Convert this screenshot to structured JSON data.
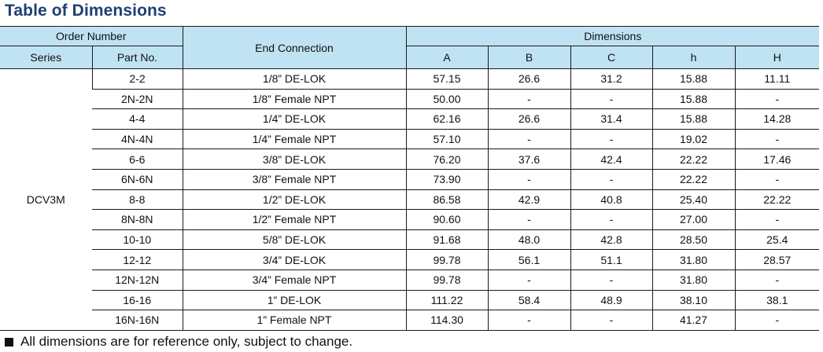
{
  "title": "Table of Dimensions",
  "headers": {
    "order_number": "Order Number",
    "series": "Series",
    "part_no": "Part No.",
    "end_connection": "End Connection",
    "dimensions": "Dimensions",
    "A": "A",
    "B": "B",
    "C": "C",
    "h": "h",
    "H": "H"
  },
  "series_name": "DCV3M",
  "rows": [
    {
      "part": "2-2",
      "conn": "1/8” DE-LOK",
      "A": "57.15",
      "B": "26.6",
      "C": "31.2",
      "h": "15.88",
      "H": "11.11"
    },
    {
      "part": "2N-2N",
      "conn": "1/8” Female NPT",
      "A": "50.00",
      "B": "-",
      "C": "-",
      "h": "15.88",
      "H": "-"
    },
    {
      "part": "4-4",
      "conn": "1/4” DE-LOK",
      "A": "62.16",
      "B": "26.6",
      "C": "31.4",
      "h": "15.88",
      "H": "14.28"
    },
    {
      "part": "4N-4N",
      "conn": "1/4” Female NPT",
      "A": "57.10",
      "B": "-",
      "C": "-",
      "h": "19.02",
      "H": "-"
    },
    {
      "part": "6-6",
      "conn": "3/8” DE-LOK",
      "A": "76.20",
      "B": "37.6",
      "C": "42.4",
      "h": "22.22",
      "H": "17.46"
    },
    {
      "part": "6N-6N",
      "conn": "3/8” Female NPT",
      "A": "73.90",
      "B": "-",
      "C": "-",
      "h": "22.22",
      "H": "-"
    },
    {
      "part": "8-8",
      "conn": "1/2” DE-LOK",
      "A": "86.58",
      "B": "42.9",
      "C": "40.8",
      "h": "25.40",
      "H": "22.22"
    },
    {
      "part": "8N-8N",
      "conn": "1/2” Female NPT",
      "A": "90.60",
      "B": "-",
      "C": "-",
      "h": "27.00",
      "H": "-"
    },
    {
      "part": "10-10",
      "conn": "5/8” DE-LOK",
      "A": "91.68",
      "B": "48.0",
      "C": "42.8",
      "h": "28.50",
      "H": "25.4"
    },
    {
      "part": "12-12",
      "conn": "3/4” DE-LOK",
      "A": "99.78",
      "B": "56.1",
      "C": "51.1",
      "h": "31.80",
      "H": "28.57"
    },
    {
      "part": "12N-12N",
      "conn": "3/4” Female NPT",
      "A": "99.78",
      "B": "-",
      "C": "-",
      "h": "31.80",
      "H": "-"
    },
    {
      "part": "16-16",
      "conn": "1” DE-LOK",
      "A": "111.22",
      "B": "58.4",
      "C": "48.9",
      "h": "38.10",
      "H": "38.1"
    },
    {
      "part": "16N-16N",
      "conn": "1” Female NPT",
      "A": "114.30",
      "B": "-",
      "C": "-",
      "h": "41.27",
      "H": "-"
    }
  ],
  "note": "All dimensions are for reference only, subject to change.",
  "colors": {
    "title": "#1f3f73",
    "header_bg": "#bfe3f2"
  }
}
